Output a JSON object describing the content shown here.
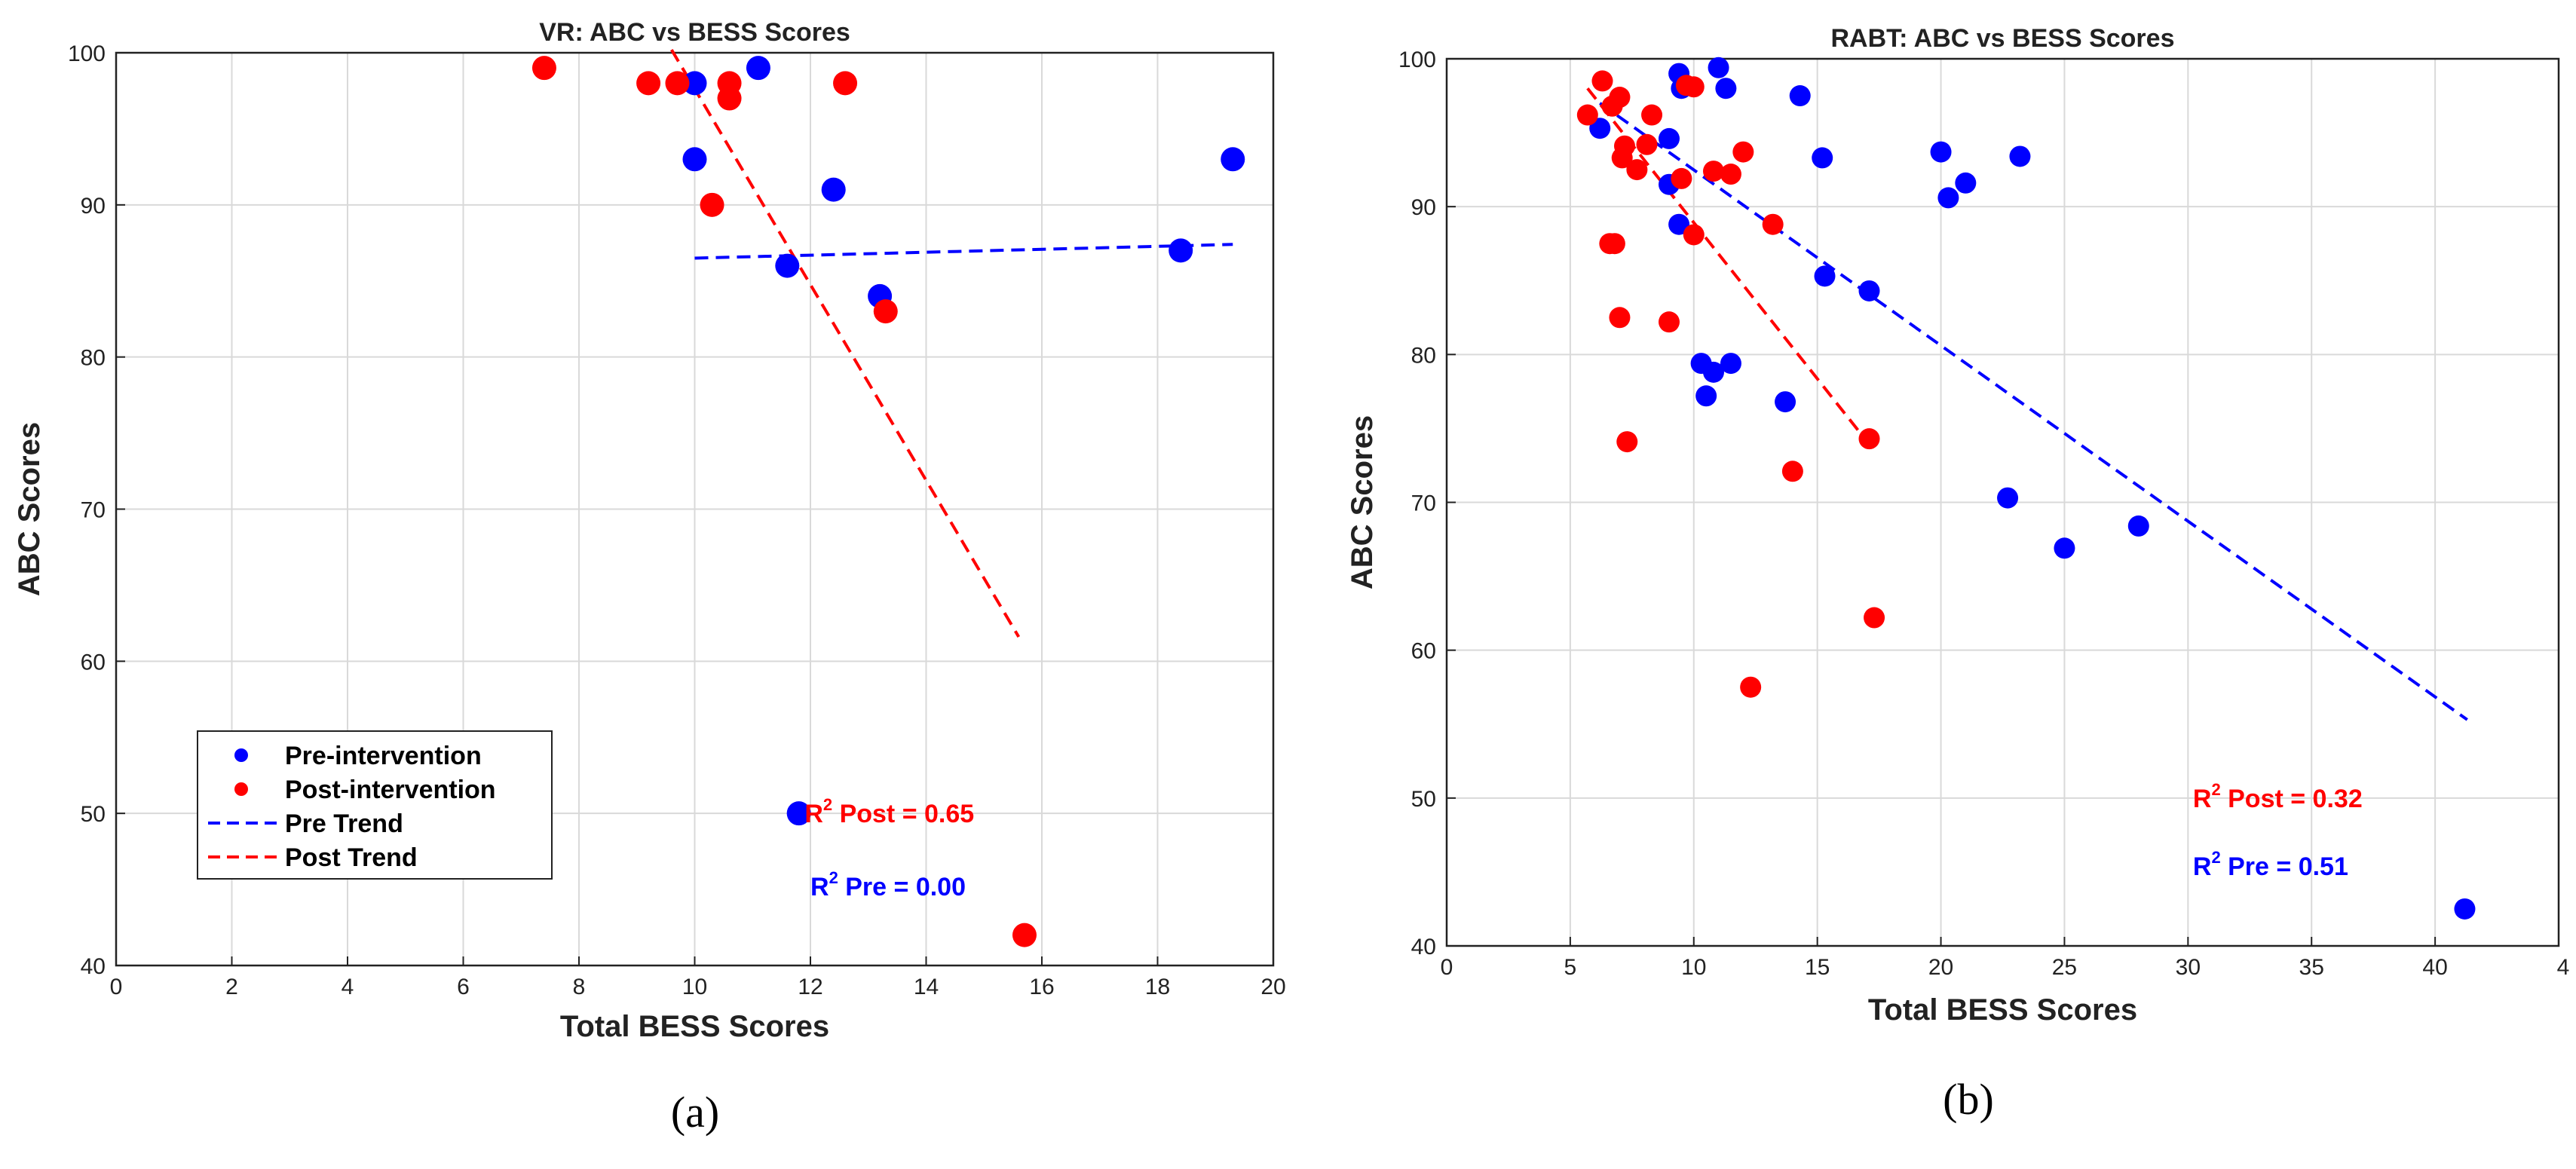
{
  "chart_data": [
    {
      "type": "scatter",
      "panel_label": "(a)",
      "title": "VR: ABC vs BESS Scores",
      "xlabel": "Total BESS Scores",
      "ylabel": "ABC Scores",
      "xlim": [
        0,
        20
      ],
      "ylim": [
        40,
        100
      ],
      "xticks": [
        0,
        2,
        4,
        6,
        8,
        10,
        12,
        14,
        16,
        18,
        20
      ],
      "yticks": [
        40,
        50,
        60,
        70,
        80,
        90,
        100
      ],
      "grid": true,
      "legend_position": "lower-left",
      "colors": {
        "pre": "#0000ff",
        "post": "#ff0000"
      },
      "series": [
        {
          "name": "Pre-intervention",
          "color": "#0000ff",
          "points": [
            [
              10.0,
              98
            ],
            [
              10.0,
              93
            ],
            [
              11.1,
              99
            ],
            [
              12.4,
              91
            ],
            [
              11.6,
              86
            ],
            [
              13.2,
              84
            ],
            [
              18.4,
              87
            ],
            [
              19.3,
              93
            ],
            [
              11.8,
              50
            ]
          ]
        },
        {
          "name": "Post-intervention",
          "color": "#ff0000",
          "points": [
            [
              7.4,
              99
            ],
            [
              9.2,
              98
            ],
            [
              9.7,
              98
            ],
            [
              10.6,
              98
            ],
            [
              10.6,
              97
            ],
            [
              12.6,
              98
            ],
            [
              10.3,
              90
            ],
            [
              13.3,
              83
            ],
            [
              15.7,
              42
            ]
          ]
        }
      ],
      "trends": [
        {
          "name": "Pre Trend",
          "color": "#0000ff",
          "x": [
            10.0,
            19.3
          ],
          "y": [
            86.5,
            87.4
          ]
        },
        {
          "name": "Post Trend",
          "color": "#ff0000",
          "x": [
            9.6,
            15.6
          ],
          "y": [
            100.2,
            61.6
          ]
        }
      ],
      "annotations": [
        {
          "label": "Post",
          "value": "= 0.65",
          "color": "#ff0000",
          "at": [
            11.9,
            50
          ]
        },
        {
          "label": "Pre",
          "value": "= 0.00",
          "color": "#0000ff",
          "at": [
            12.0,
            45.2
          ]
        }
      ],
      "annotation_prefix": "R",
      "annotation_sup": "2"
    },
    {
      "type": "scatter",
      "panel_label": "(b)",
      "title": "RABT: ABC vs BESS Scores",
      "xlabel": "Total BESS Scores",
      "ylabel": "ABC Scores",
      "xlim": [
        0,
        45
      ],
      "ylim": [
        40,
        100
      ],
      "xticks": [
        0,
        5,
        10,
        15,
        20,
        25,
        30,
        35,
        40
      ],
      "extra_tick_label": "4",
      "yticks": [
        40,
        50,
        60,
        70,
        80,
        90,
        100
      ],
      "grid": true,
      "colors": {
        "pre": "#0000ff",
        "post": "#ff0000"
      },
      "series": [
        {
          "name": "Pre-intervention",
          "color": "#0000ff",
          "points": [
            [
              6.2,
              95.3
            ],
            [
              9.0,
              94.6
            ],
            [
              9.0,
              91.5
            ],
            [
              9.4,
              99
            ],
            [
              9.5,
              98
            ],
            [
              11.0,
              99.4
            ],
            [
              11.3,
              98
            ],
            [
              14.3,
              97.5
            ],
            [
              9.4,
              88.8
            ],
            [
              15.2,
              93.3
            ],
            [
              15.3,
              85.3
            ],
            [
              17.1,
              84.3
            ],
            [
              10.3,
              79.4
            ],
            [
              10.5,
              77.2
            ],
            [
              10.8,
              78.8
            ],
            [
              11.5,
              79.4
            ],
            [
              13.7,
              76.8
            ],
            [
              20.0,
              93.7
            ],
            [
              20.3,
              90.6
            ],
            [
              21.0,
              91.6
            ],
            [
              23.2,
              93.4
            ],
            [
              22.7,
              70.3
            ],
            [
              25.0,
              66.9
            ],
            [
              28.0,
              68.4
            ],
            [
              41.2,
              42.5
            ]
          ]
        },
        {
          "name": "Post-intervention",
          "color": "#ff0000",
          "points": [
            [
              5.7,
              96.2
            ],
            [
              6.3,
              98.5
            ],
            [
              6.7,
              96.8
            ],
            [
              7.0,
              97.4
            ],
            [
              7.1,
              93.3
            ],
            [
              7.2,
              94.1
            ],
            [
              7.7,
              92.5
            ],
            [
              8.1,
              94.2
            ],
            [
              8.3,
              96.2
            ],
            [
              9.5,
              91.9
            ],
            [
              9.7,
              98.2
            ],
            [
              10.0,
              98.1
            ],
            [
              10.0,
              88.1
            ],
            [
              10.8,
              92.4
            ],
            [
              11.5,
              92.2
            ],
            [
              12.0,
              93.7
            ],
            [
              13.2,
              88.8
            ],
            [
              6.6,
              87.5
            ],
            [
              6.8,
              87.5
            ],
            [
              7.0,
              82.5
            ],
            [
              9.0,
              82.2
            ],
            [
              7.3,
              74.1
            ],
            [
              14.0,
              72.1
            ],
            [
              17.1,
              74.3
            ],
            [
              17.3,
              62.2
            ],
            [
              12.3,
              57.5
            ]
          ]
        }
      ],
      "trends": [
        {
          "name": "Pre Trend",
          "color": "#0000ff",
          "x": [
            6.2,
            41.3
          ],
          "y": [
            97.0,
            55.3
          ]
        },
        {
          "name": "Post Trend",
          "color": "#ff0000",
          "x": [
            5.7,
            17.3
          ],
          "y": [
            98.0,
            73.5
          ]
        }
      ],
      "annotations": [
        {
          "label": "Post",
          "value": "= 0.32",
          "color": "#ff0000",
          "at": [
            30.2,
            50
          ]
        },
        {
          "label": "Pre",
          "value": "= 0.51",
          "color": "#0000ff",
          "at": [
            30.2,
            45.4
          ]
        }
      ],
      "annotation_prefix": "R",
      "annotation_sup": "2"
    }
  ]
}
